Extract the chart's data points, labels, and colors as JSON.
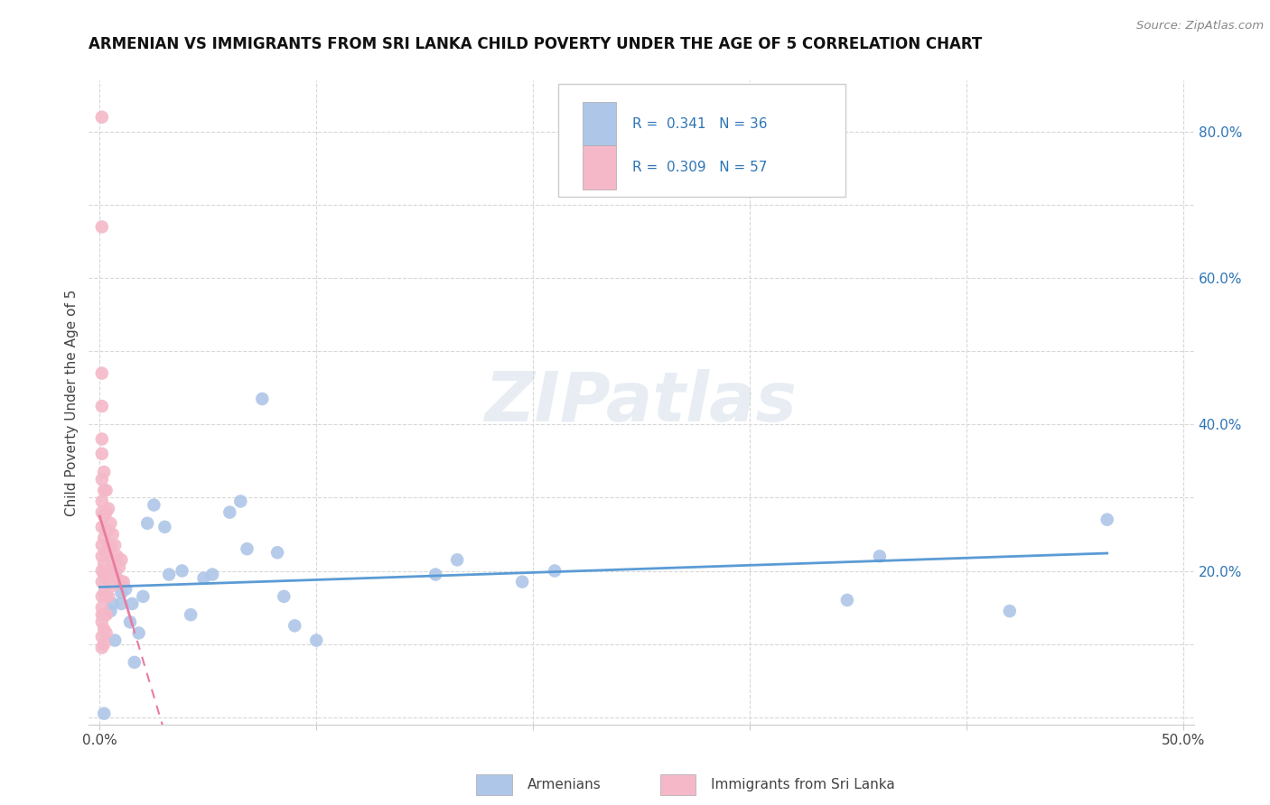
{
  "title": "ARMENIAN VS IMMIGRANTS FROM SRI LANKA CHILD POVERTY UNDER THE AGE OF 5 CORRELATION CHART",
  "source": "Source: ZipAtlas.com",
  "ylabel": "Child Poverty Under the Age of 5",
  "xlim": [
    -0.005,
    0.505
  ],
  "ylim": [
    -0.01,
    0.87
  ],
  "xticks": [
    0.0,
    0.1,
    0.2,
    0.3,
    0.4,
    0.5
  ],
  "yticks": [
    0.0,
    0.2,
    0.4,
    0.6,
    0.8
  ],
  "ytick_labels_right": [
    "20.0%",
    "40.0%",
    "60.0%",
    "80.0%"
  ],
  "xtick_labels": [
    "0.0%",
    "",
    "",
    "",
    "",
    "50.0%"
  ],
  "armenian_R": 0.341,
  "armenian_N": 36,
  "srilanka_R": 0.309,
  "srilanka_N": 57,
  "armenian_color": "#aec6e8",
  "srilanka_color": "#f4b8c8",
  "trendline_armenian_color": "#5b9bd5",
  "trendline_srilanka_color": "#e87ca0",
  "legend_text_color": "#2e75b6",
  "watermark": "ZIPatlas",
  "armenian_x": [
    0.002,
    0.005,
    0.006,
    0.007,
    0.01,
    0.01,
    0.012,
    0.014,
    0.015,
    0.016,
    0.018,
    0.02,
    0.022,
    0.025,
    0.03,
    0.032,
    0.038,
    0.042,
    0.048,
    0.052,
    0.06,
    0.065,
    0.068,
    0.075,
    0.082,
    0.085,
    0.09,
    0.1,
    0.155,
    0.165,
    0.195,
    0.21,
    0.345,
    0.36,
    0.42,
    0.465
  ],
  "armenian_y": [
    0.005,
    0.145,
    0.155,
    0.105,
    0.155,
    0.17,
    0.175,
    0.13,
    0.155,
    0.075,
    0.115,
    0.165,
    0.265,
    0.29,
    0.26,
    0.195,
    0.2,
    0.14,
    0.19,
    0.195,
    0.28,
    0.295,
    0.23,
    0.435,
    0.225,
    0.165,
    0.125,
    0.105,
    0.195,
    0.215,
    0.185,
    0.2,
    0.16,
    0.22,
    0.145,
    0.27
  ],
  "srilanka_x": [
    0.001,
    0.001,
    0.001,
    0.001,
    0.001,
    0.001,
    0.001,
    0.001,
    0.001,
    0.001,
    0.001,
    0.001,
    0.001,
    0.001,
    0.001,
    0.001,
    0.001,
    0.001,
    0.001,
    0.001,
    0.002,
    0.002,
    0.002,
    0.002,
    0.002,
    0.002,
    0.002,
    0.002,
    0.002,
    0.002,
    0.003,
    0.003,
    0.003,
    0.003,
    0.003,
    0.003,
    0.003,
    0.003,
    0.004,
    0.004,
    0.004,
    0.004,
    0.004,
    0.005,
    0.005,
    0.005,
    0.006,
    0.006,
    0.006,
    0.007,
    0.007,
    0.008,
    0.008,
    0.009,
    0.01,
    0.01,
    0.011
  ],
  "srilanka_y": [
    0.82,
    0.67,
    0.47,
    0.425,
    0.38,
    0.36,
    0.325,
    0.295,
    0.28,
    0.26,
    0.235,
    0.22,
    0.2,
    0.185,
    0.165,
    0.15,
    0.14,
    0.13,
    0.11,
    0.095,
    0.335,
    0.31,
    0.275,
    0.245,
    0.21,
    0.195,
    0.17,
    0.14,
    0.12,
    0.1,
    0.31,
    0.28,
    0.255,
    0.225,
    0.19,
    0.165,
    0.14,
    0.115,
    0.285,
    0.255,
    0.23,
    0.2,
    0.165,
    0.265,
    0.235,
    0.2,
    0.25,
    0.215,
    0.18,
    0.235,
    0.2,
    0.22,
    0.19,
    0.205,
    0.215,
    0.185,
    0.185
  ]
}
